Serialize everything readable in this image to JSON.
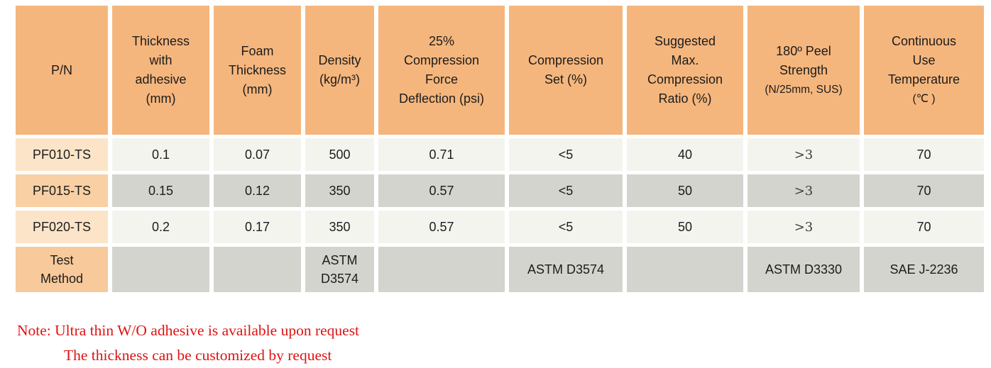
{
  "colors": {
    "header-orange": "#F5B67D",
    "pn-light": "#FCE4C8",
    "pn-medium": "#F8D0A4",
    "test-orange": "#F8C99B",
    "row-light": "#F4F4EF",
    "row-gray": "#D3D4CD",
    "note-red": "#DE1313"
  },
  "table": {
    "headers": [
      {
        "name": "pn",
        "lines": [
          {
            "t": "P/N"
          }
        ]
      },
      {
        "name": "thickness-with-adhesive",
        "lines": [
          {
            "t": "Thickness"
          },
          {
            "t": "with"
          },
          {
            "t": "adhesive"
          },
          {
            "t": "(mm)"
          }
        ]
      },
      {
        "name": "foam-thickness",
        "lines": [
          {
            "t": "Foam"
          },
          {
            "t": "Thickness"
          },
          {
            "t": "(mm)"
          }
        ]
      },
      {
        "name": "density",
        "lines": [
          {
            "t": "Density"
          },
          {
            "t": "(kg/m³)"
          }
        ]
      },
      {
        "name": "compression-force-deflection",
        "lines": [
          {
            "t": "25%"
          },
          {
            "t": "Compression"
          },
          {
            "t": "Force"
          },
          {
            "t": "Deflection (psi)"
          }
        ]
      },
      {
        "name": "compression-set",
        "lines": [
          {
            "t": "Compression"
          },
          {
            "t": "Set (%)"
          }
        ]
      },
      {
        "name": "suggested-max-compression-ratio",
        "lines": [
          {
            "t": "Suggested"
          },
          {
            "t": "Max."
          },
          {
            "t": "Compression"
          },
          {
            "t": "Ratio (%)"
          }
        ]
      },
      {
        "name": "peel-strength",
        "lines": [
          {
            "t": "180º Peel"
          },
          {
            "t": "Strength"
          },
          {
            "t": "(N/25mm, SUS)",
            "small": true
          }
        ]
      },
      {
        "name": "continuous-use-temperature",
        "lines": [
          {
            "t": "Continuous"
          },
          {
            "t": "Use"
          },
          {
            "t": "Temperature"
          },
          {
            "t": "(℃ )",
            "small": true
          }
        ]
      }
    ],
    "rows": [
      {
        "pn": "PF010-TS",
        "values": [
          "0.1",
          "0.07",
          "500",
          "0.71",
          "<5",
          "40",
          ">3",
          "70"
        ]
      },
      {
        "pn": "PF015-TS",
        "values": [
          "0.15",
          "0.12",
          "350",
          "0.57",
          "<5",
          "50",
          ">3",
          "70"
        ]
      },
      {
        "pn": "PF020-TS",
        "values": [
          "0.2",
          "0.17",
          "350",
          "0.57",
          "<5",
          "50",
          ">3",
          "70"
        ]
      }
    ],
    "test_method": {
      "label": "Test Method",
      "values": [
        "",
        "",
        "ASTM D3574",
        "",
        "ASTM D3574",
        "",
        "ASTM D3330",
        "SAE J-2236"
      ]
    }
  },
  "note": {
    "line1": "Note: Ultra thin W/O adhesive is available upon request",
    "line2": "The thickness can be customized by request"
  }
}
